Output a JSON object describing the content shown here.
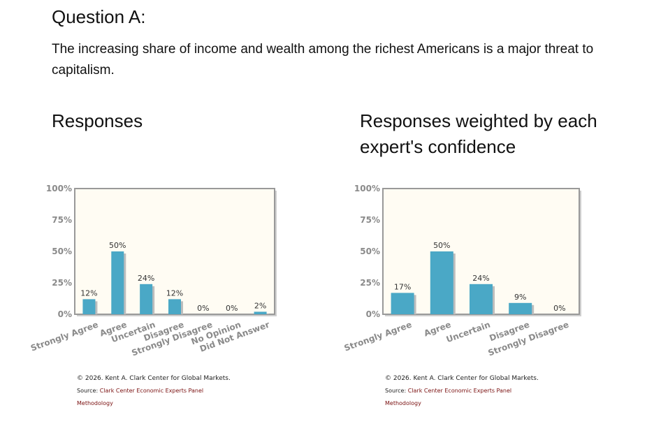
{
  "question": {
    "title": "Question A:",
    "text": "The increasing share of income and wealth among the richest Americans is a major threat to capitalism."
  },
  "colors": {
    "bar": "#4aa8c6",
    "bar_shadow": "#bdbdbd",
    "plot_bg": "#fffcf3",
    "plot_border": "#999999",
    "tick_text": "#8a8a8a",
    "link": "#7a1010"
  },
  "chart_data": [
    {
      "type": "bar",
      "title": "Responses",
      "categories": [
        "Strongly Agree",
        "Agree",
        "Uncertain",
        "Disagree",
        "Strongly Disagree",
        "No Opinion",
        "Did Not Answer"
      ],
      "values": [
        12,
        50,
        24,
        12,
        0,
        0,
        2
      ],
      "value_labels": [
        "12%",
        "50%",
        "24%",
        "12%",
        "0%",
        "0%",
        "2%"
      ],
      "ylim": [
        0,
        100
      ],
      "yticks": [
        "0%",
        "25%",
        "50%",
        "75%",
        "100%"
      ],
      "ytick_values": [
        0,
        25,
        50,
        75,
        100
      ],
      "footer": {
        "copyright": "© 2026. Kent A. Clark Center for Global Markets.",
        "source_prefix": "Source: ",
        "source_link": "Clark Center Economic Experts Panel",
        "methodology": "Methodology"
      }
    },
    {
      "type": "bar",
      "title": "Responses weighted by each expert's confidence",
      "categories": [
        "Strongly Agree",
        "Agree",
        "Uncertain",
        "Disagree",
        "Strongly Disagree"
      ],
      "values": [
        17,
        50,
        24,
        9,
        0
      ],
      "value_labels": [
        "17%",
        "50%",
        "24%",
        "9%",
        "0%"
      ],
      "ylim": [
        0,
        100
      ],
      "yticks": [
        "0%",
        "25%",
        "50%",
        "75%",
        "100%"
      ],
      "ytick_values": [
        0,
        25,
        50,
        75,
        100
      ],
      "footer": {
        "copyright": "© 2026. Kent A. Clark Center for Global Markets.",
        "source_prefix": "Source: ",
        "source_link": "Clark Center Economic Experts Panel",
        "methodology": "Methodology"
      }
    }
  ]
}
